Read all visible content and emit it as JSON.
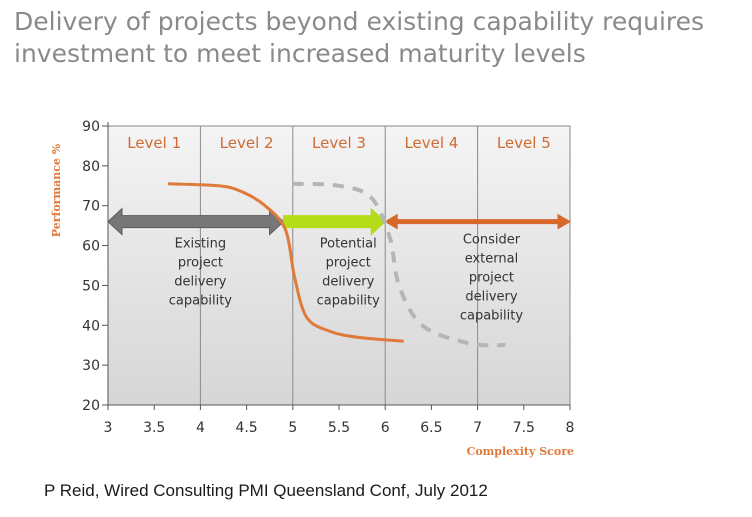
{
  "title_lines": [
    "Delivery of projects beyond existing capability requires",
    "investment to meet increased maturity levels"
  ],
  "caption": "P Reid, Wired Consulting PMI Queensland Conf, July 2012",
  "chart_data": {
    "type": "line",
    "xlabel": "Complexity Score",
    "ylabel": "Performance %",
    "xlim": [
      3,
      8
    ],
    "ylim": [
      20,
      90
    ],
    "x_ticks": [
      "3",
      "3.5",
      "4",
      "4.5",
      "5",
      "5.5",
      "6",
      "6.5",
      "7",
      "7.5",
      "8"
    ],
    "y_ticks": [
      "90",
      "80",
      "70",
      "60",
      "50",
      "40",
      "30",
      "20"
    ],
    "levels": [
      {
        "label": "Level 1",
        "x_start": 3,
        "x_end": 4
      },
      {
        "label": "Level 2",
        "x_start": 4,
        "x_end": 5
      },
      {
        "label": "Level 3",
        "x_start": 5,
        "x_end": 6
      },
      {
        "label": "Level 4",
        "x_start": 6,
        "x_end": 7
      },
      {
        "label": "Level 5",
        "x_start": 7,
        "x_end": 8
      }
    ],
    "series": [
      {
        "style": "solid",
        "color": "#e07a3a",
        "points": [
          [
            3.65,
            75.5
          ],
          [
            4.2,
            75
          ],
          [
            4.45,
            73.5
          ],
          [
            4.7,
            70
          ],
          [
            4.92,
            64
          ],
          [
            5.02,
            52
          ],
          [
            5.15,
            42
          ],
          [
            5.4,
            38.5
          ],
          [
            5.7,
            37
          ],
          [
            6.2,
            36
          ]
        ]
      },
      {
        "style": "dashed",
        "color": "#b5b5b5",
        "points": [
          [
            5.0,
            75.5
          ],
          [
            5.5,
            75
          ],
          [
            5.85,
            72
          ],
          [
            6.05,
            62
          ],
          [
            6.15,
            50
          ],
          [
            6.4,
            40
          ],
          [
            6.9,
            35.5
          ],
          [
            7.3,
            35
          ]
        ]
      }
    ],
    "arrows": [
      {
        "x_start": 3,
        "x_end": 4.9,
        "y": 66,
        "color": "#777777",
        "direction": "both"
      },
      {
        "x_start": 4.9,
        "x_end": 6,
        "y": 66,
        "color": "#b4dc18",
        "direction": "right"
      },
      {
        "x_start": 6,
        "x_end": 8,
        "y": 66,
        "color": "#d8682a",
        "direction": "both"
      }
    ],
    "annotations": [
      {
        "lines": [
          "Existing",
          "project",
          "delivery",
          "capability"
        ],
        "x": 4.0,
        "y_top": 59.5
      },
      {
        "lines": [
          "Potential",
          "project",
          "delivery",
          "capability"
        ],
        "x": 5.6,
        "y_top": 59.5
      },
      {
        "lines": [
          "Consider",
          "external",
          "project",
          "delivery",
          "capability"
        ],
        "x": 7.15,
        "y_top": 60.5
      }
    ]
  }
}
